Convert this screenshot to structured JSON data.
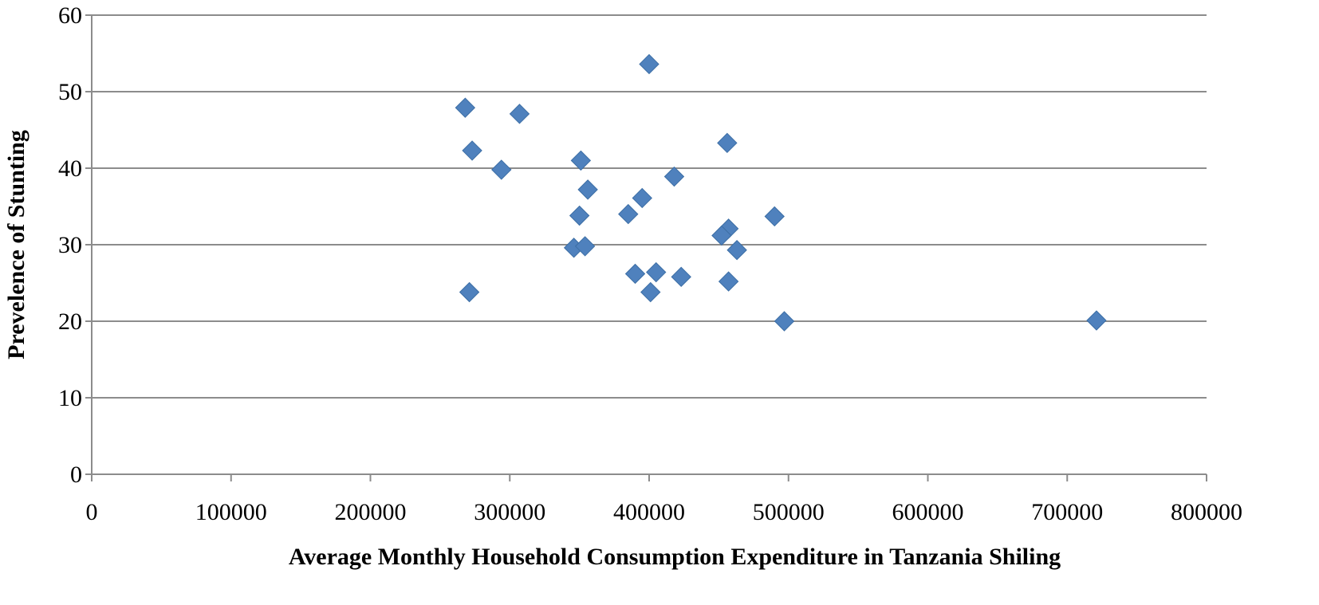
{
  "chart_data": {
    "type": "scatter",
    "title": "",
    "xlabel": "Average Monthly Household Consumption Expenditure in Tanzania Shiling",
    "ylabel": "Prevelence of  Stunting",
    "xlim": [
      0,
      800000
    ],
    "ylim": [
      0,
      60
    ],
    "x_ticks": [
      "0",
      "100000",
      "200000",
      "300000",
      "400000",
      "500000",
      "600000",
      "700000",
      "800000"
    ],
    "y_ticks": [
      "0",
      "10",
      "20",
      "30",
      "40",
      "50",
      "60"
    ],
    "grid": "horizontal",
    "marker": "diamond",
    "color": "#4F81BD",
    "points": [
      {
        "x": 268000,
        "y": 47.9
      },
      {
        "x": 273000,
        "y": 42.3
      },
      {
        "x": 271000,
        "y": 23.8
      },
      {
        "x": 294000,
        "y": 39.8
      },
      {
        "x": 307000,
        "y": 47.1
      },
      {
        "x": 351000,
        "y": 41.0
      },
      {
        "x": 356000,
        "y": 37.2
      },
      {
        "x": 350000,
        "y": 33.8
      },
      {
        "x": 346000,
        "y": 29.6
      },
      {
        "x": 354000,
        "y": 29.8
      },
      {
        "x": 400000,
        "y": 53.6
      },
      {
        "x": 395000,
        "y": 36.1
      },
      {
        "x": 385000,
        "y": 34.0
      },
      {
        "x": 390000,
        "y": 26.2
      },
      {
        "x": 405000,
        "y": 26.4
      },
      {
        "x": 401000,
        "y": 23.8
      },
      {
        "x": 418000,
        "y": 38.9
      },
      {
        "x": 423000,
        "y": 25.8
      },
      {
        "x": 456000,
        "y": 43.3
      },
      {
        "x": 457000,
        "y": 32.1
      },
      {
        "x": 452000,
        "y": 31.2
      },
      {
        "x": 463000,
        "y": 29.3
      },
      {
        "x": 457000,
        "y": 25.2
      },
      {
        "x": 490000,
        "y": 33.7
      },
      {
        "x": 497000,
        "y": 20.0
      },
      {
        "x": 721000,
        "y": 20.1
      }
    ]
  }
}
